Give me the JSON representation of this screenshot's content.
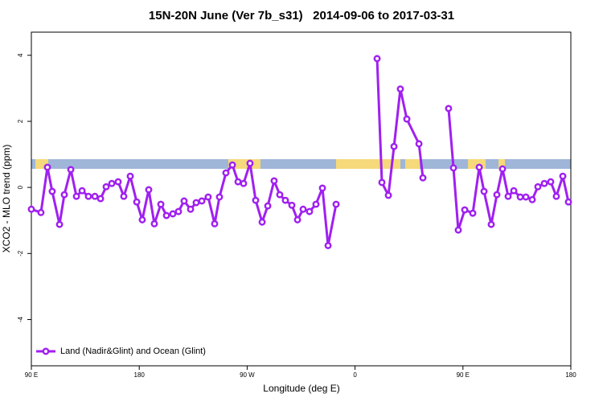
{
  "chart_data": {
    "type": "line",
    "title": "15N-20N June (Ver 7b_s31)   2014-09-06 to 2017-03-31",
    "xlabel": "Longitude (deg E)",
    "ylabel": "XCO2 - MLO trend (ppm)",
    "xlim": [
      90,
      540
    ],
    "ylim": [
      -5.4,
      4.7
    ],
    "xticks": [
      {
        "value": 90,
        "label": "90 E"
      },
      180,
      {
        "value": 270,
        "label": "90 W"
      },
      {
        "value": 360,
        "label": "0"
      },
      {
        "value": 450,
        "label": "90 E"
      },
      {
        "value": 540,
        "label": "180"
      }
    ],
    "yticks": [
      -4,
      -2,
      0,
      2,
      4
    ],
    "legend": "bottom-left",
    "series": [
      {
        "name": "Land (Nadir&Glint) and Ocean (Glint)",
        "color": "#a020f0",
        "x": [
          90,
          98,
          103.4,
          107.4,
          113.5,
          117.5,
          122.9,
          127.6,
          132.3,
          137.6,
          143,
          147.7,
          152.4,
          157.1,
          162.4,
          167.1,
          172.5,
          177.9,
          182.5,
          187.9,
          192.6,
          198,
          202.7,
          208,
          212.7,
          217.4,
          222.8,
          227.5,
          232.2,
          237.5,
          242.9,
          246.9,
          252.3,
          257.7,
          262.4,
          267,
          272.4,
          277.1,
          282.5,
          287.2,
          292.5,
          297.2,
          301.9,
          307.3,
          312,
          316.7,
          322,
          327.4,
          332.8,
          337.5,
          344.2,
          360,
          378.4,
          382.4,
          387.8,
          392.5,
          397.8,
          403.2,
          413.3,
          416.6,
          425,
          438,
          442.1,
          446.1,
          451.5,
          458.2,
          463.6,
          467.6,
          473.6,
          478.3,
          483,
          487.7,
          492.4,
          497.8,
          502.5,
          507.8,
          512.5,
          517.9,
          523.2,
          527.9,
          533.3,
          538
        ],
        "values": [
          -0.66,
          -0.76,
          0.61,
          -0.12,
          -1.12,
          -0.22,
          0.54,
          -0.27,
          -0.1,
          -0.27,
          -0.27,
          -0.34,
          0.02,
          0.12,
          0.17,
          -0.27,
          0.34,
          -0.44,
          -0.98,
          -0.07,
          -1.1,
          -0.51,
          -0.85,
          -0.8,
          -0.73,
          -0.41,
          -0.66,
          -0.46,
          -0.41,
          -0.29,
          -1.1,
          -0.29,
          0.44,
          0.68,
          0.17,
          0.12,
          0.73,
          -0.39,
          -1.05,
          -0.56,
          0.2,
          -0.22,
          -0.39,
          -0.54,
          -0.98,
          -0.66,
          -0.73,
          -0.51,
          -0.02,
          -1.76,
          -0.51,
          null,
          3.9,
          0.15,
          -0.24,
          1.24,
          2.98,
          2.07,
          1.32,
          0.29,
          null,
          2.39,
          0.59,
          -1.29,
          -0.68,
          -0.78,
          0.61,
          -0.12,
          -1.12,
          -0.22,
          0.56,
          -0.27,
          -0.1,
          -0.29,
          -0.29,
          -0.37,
          0.02,
          0.12,
          0.17,
          -0.27,
          0.34,
          -0.44
        ]
      }
    ]
  }
}
